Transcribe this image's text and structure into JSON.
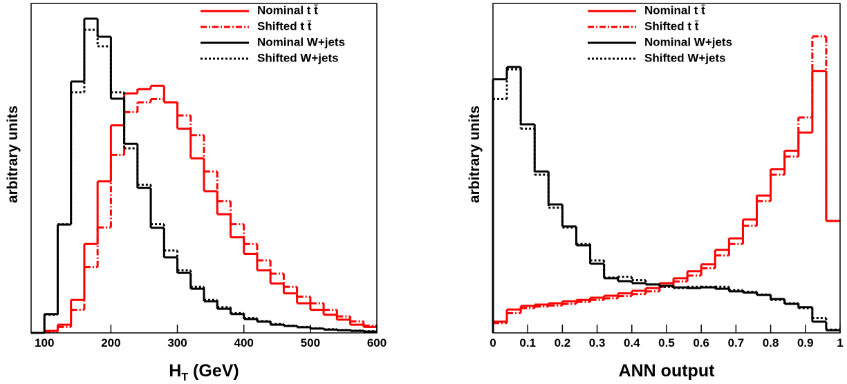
{
  "chart_data": [
    {
      "type": "histogram",
      "xlabel": {
        "text": "H",
        "sub": "T",
        "rest": " (GeV)"
      },
      "ylabel": "arbitrary units",
      "bins": [
        80,
        100,
        120,
        140,
        160,
        180,
        200,
        220,
        240,
        260,
        280,
        300,
        320,
        340,
        360,
        380,
        400,
        420,
        440,
        460,
        480,
        500,
        520,
        540,
        560,
        580,
        600
      ],
      "xlim": [
        80,
        600
      ],
      "xticks": [
        100,
        200,
        300,
        400,
        500,
        600
      ],
      "ylim": [
        0,
        1
      ],
      "legend": "upper right",
      "series": [
        {
          "name": "Nominal t t̄",
          "color": "#ff0000",
          "style": "solid",
          "values": [
            0,
            0.006,
            0.025,
            0.1,
            0.27,
            0.46,
            0.63,
            0.727,
            0.74,
            0.75,
            0.7,
            0.62,
            0.53,
            0.43,
            0.36,
            0.29,
            0.24,
            0.19,
            0.15,
            0.12,
            0.09,
            0.07,
            0.055,
            0.04,
            0.025,
            0.018
          ]
        },
        {
          "name": "Shifted t t̄",
          "color": "#ff0000",
          "style": "dashdot",
          "values": [
            0,
            0.004,
            0.018,
            0.07,
            0.2,
            0.32,
            0.54,
            0.67,
            0.7,
            0.71,
            0.7,
            0.66,
            0.6,
            0.49,
            0.4,
            0.33,
            0.27,
            0.22,
            0.18,
            0.14,
            0.11,
            0.09,
            0.07,
            0.05,
            0.035,
            0.022
          ]
        },
        {
          "name": "Nominal W+jets",
          "color": "#000000",
          "style": "solid",
          "values": [
            0,
            0.057,
            0.329,
            0.763,
            0.954,
            0.899,
            0.711,
            0.574,
            0.44,
            0.319,
            0.229,
            0.182,
            0.134,
            0.096,
            0.073,
            0.057,
            0.042,
            0.034,
            0.025,
            0.021,
            0.017,
            0.013,
            0.01,
            0.008,
            0.006,
            0.004
          ]
        },
        {
          "name": "Shifted W+jets",
          "color": "#000000",
          "style": "dotted",
          "values": [
            0,
            0.055,
            0.33,
            0.73,
            0.92,
            0.87,
            0.73,
            0.56,
            0.45,
            0.33,
            0.25,
            0.19,
            0.14,
            0.1,
            0.078,
            0.06,
            0.045,
            0.036,
            0.027,
            0.022,
            0.018,
            0.014,
            0.011,
            0.009,
            0.007,
            0.005
          ]
        }
      ]
    },
    {
      "type": "histogram",
      "xlabel": {
        "text": "ANN output"
      },
      "ylabel": "arbitrary units",
      "bins": [
        0,
        0.04,
        0.08,
        0.12,
        0.16,
        0.2,
        0.24,
        0.28,
        0.32,
        0.36,
        0.4,
        0.44,
        0.48,
        0.52,
        0.56,
        0.6,
        0.64,
        0.68,
        0.72,
        0.76,
        0.8,
        0.84,
        0.88,
        0.92,
        0.96,
        1
      ],
      "xlim": [
        0,
        1
      ],
      "xticks": [
        0,
        0.1,
        0.2,
        0.3,
        0.4,
        0.5,
        0.6,
        0.7,
        0.8,
        0.9,
        1
      ],
      "ylim": [
        0,
        1
      ],
      "legend": "upper right",
      "series": [
        {
          "name": "Nominal t t̄",
          "color": "#ff0000",
          "style": "solid",
          "values": [
            0.034,
            0.071,
            0.082,
            0.086,
            0.09,
            0.096,
            0.1,
            0.107,
            0.113,
            0.12,
            0.128,
            0.136,
            0.151,
            0.166,
            0.187,
            0.208,
            0.252,
            0.287,
            0.344,
            0.417,
            0.497,
            0.553,
            0.608,
            0.795,
            0.34
          ]
        },
        {
          "name": "Shifted t t̄",
          "color": "#ff0000",
          "style": "dashdot",
          "values": [
            0.03,
            0.06,
            0.075,
            0.08,
            0.083,
            0.088,
            0.094,
            0.1,
            0.105,
            0.112,
            0.118,
            0.126,
            0.14,
            0.156,
            0.174,
            0.196,
            0.235,
            0.27,
            0.325,
            0.4,
            0.48,
            0.535,
            0.654,
            0.9,
            0.34
          ]
        },
        {
          "name": "Nominal W+jets",
          "color": "#000000",
          "style": "solid",
          "values": [
            0.77,
            0.807,
            0.633,
            0.49,
            0.39,
            0.323,
            0.266,
            0.21,
            0.166,
            0.157,
            0.151,
            0.147,
            0.143,
            0.138,
            0.136,
            0.138,
            0.134,
            0.126,
            0.122,
            0.115,
            0.103,
            0.088,
            0.078,
            0.034,
            0.008
          ]
        },
        {
          "name": "Shifted W+jets",
          "color": "#000000",
          "style": "dotted",
          "values": [
            0.71,
            0.8,
            0.62,
            0.48,
            0.38,
            0.32,
            0.27,
            0.22,
            0.168,
            0.17,
            0.16,
            0.147,
            0.14,
            0.136,
            0.14,
            0.14,
            0.14,
            0.13,
            0.125,
            0.116,
            0.1,
            0.09,
            0.075,
            0.045,
            0.01
          ]
        }
      ]
    }
  ]
}
